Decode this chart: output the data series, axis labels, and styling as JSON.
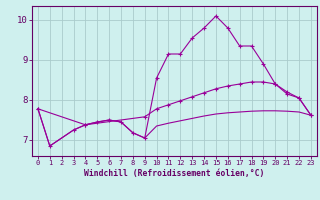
{
  "title": "",
  "xlabel": "Windchill (Refroidissement éolien,°C)",
  "background_color": "#cff0ee",
  "line_color": "#990099",
  "grid_color": "#aacccc",
  "axis_color": "#660066",
  "xlim": [
    -0.5,
    23.5
  ],
  "ylim": [
    6.6,
    10.35
  ],
  "yticks": [
    7,
    8,
    9,
    10
  ],
  "xticks": [
    0,
    1,
    2,
    3,
    4,
    5,
    6,
    7,
    8,
    9,
    10,
    11,
    12,
    13,
    14,
    15,
    16,
    17,
    18,
    19,
    20,
    21,
    22,
    23
  ],
  "series1_x": [
    0,
    1,
    3,
    4,
    5,
    6,
    7,
    8,
    9,
    10,
    11,
    12,
    13,
    14,
    15,
    16,
    17,
    18,
    19,
    20,
    21,
    22,
    23
  ],
  "series1_y": [
    7.78,
    6.85,
    7.25,
    7.38,
    7.45,
    7.5,
    7.45,
    7.18,
    7.05,
    8.55,
    9.15,
    9.15,
    9.55,
    9.8,
    10.1,
    9.8,
    9.35,
    9.35,
    8.9,
    8.4,
    8.15,
    8.05,
    7.62
  ],
  "series2_x": [
    0,
    4,
    9,
    10,
    11,
    12,
    13,
    14,
    15,
    16,
    17,
    18,
    19,
    20,
    21,
    22,
    23
  ],
  "series2_y": [
    7.78,
    7.38,
    7.58,
    7.78,
    7.88,
    7.98,
    8.08,
    8.18,
    8.28,
    8.35,
    8.4,
    8.45,
    8.45,
    8.4,
    8.2,
    8.05,
    7.62
  ],
  "series3_x": [
    0,
    1,
    3,
    4,
    5,
    6,
    7,
    8,
    9,
    10,
    11,
    12,
    13,
    14,
    15,
    16,
    17,
    18,
    19,
    20,
    21,
    22,
    23
  ],
  "series3_y": [
    7.78,
    6.85,
    7.25,
    7.38,
    7.45,
    7.5,
    7.45,
    7.18,
    7.05,
    7.35,
    7.42,
    7.48,
    7.54,
    7.6,
    7.65,
    7.68,
    7.7,
    7.72,
    7.73,
    7.73,
    7.72,
    7.7,
    7.62
  ]
}
